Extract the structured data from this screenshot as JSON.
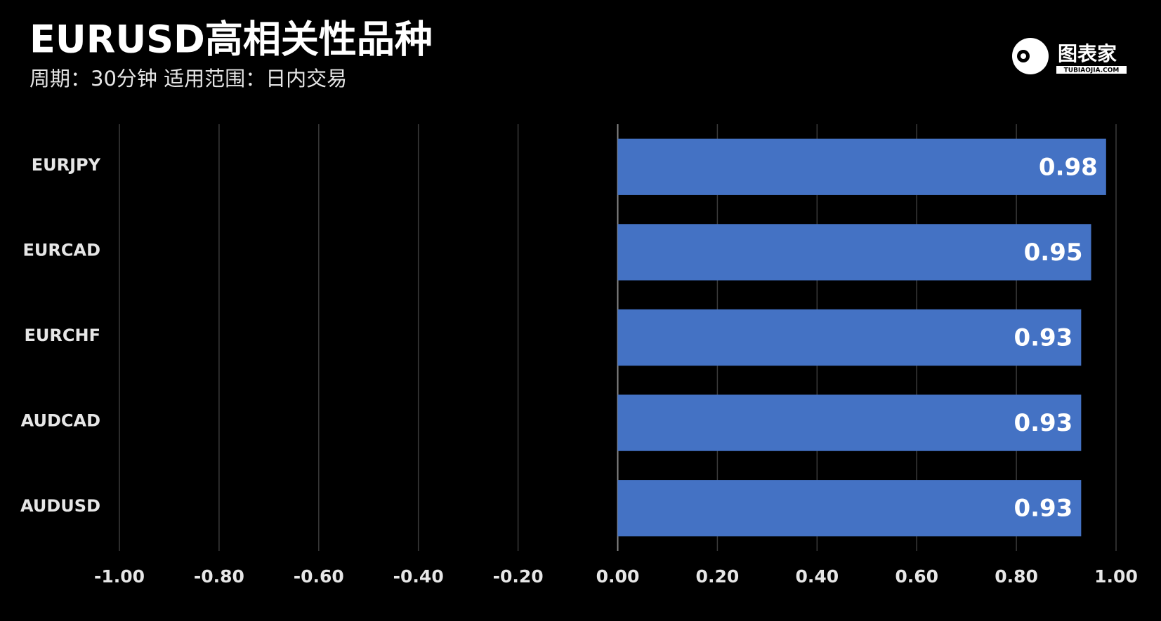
{
  "chart_data": {
    "type": "hbar",
    "title": "EURUSD高相关性品种",
    "subtitle": "周期：30分钟  适用范围：日内交易",
    "logo": {
      "name": "图表家",
      "site": "TUBIAOJIA.COM"
    },
    "categories": [
      "EURJPY",
      "EURCAD",
      "EURCHF",
      "AUDCAD",
      "AUDUSD"
    ],
    "values": [
      0.98,
      0.95,
      0.93,
      0.93,
      0.93
    ],
    "color": "#4472c4",
    "xlim": [
      -1,
      1
    ],
    "xticks": [
      {
        "value": -1,
        "label": "-1.00"
      },
      {
        "value": -0.8,
        "label": "-0.80"
      },
      {
        "value": -0.6,
        "label": "-0.60"
      },
      {
        "value": -0.4,
        "label": "-0.40"
      },
      {
        "value": -0.2,
        "label": "-0.20"
      },
      {
        "value": 0,
        "label": "0.00"
      },
      {
        "value": 0.2,
        "label": "0.20"
      },
      {
        "value": 0.4,
        "label": "0.40"
      },
      {
        "value": 0.6,
        "label": "0.60"
      },
      {
        "value": 0.8,
        "label": "0.80"
      },
      {
        "value": 1,
        "label": "1.00"
      }
    ],
    "grid": true
  }
}
